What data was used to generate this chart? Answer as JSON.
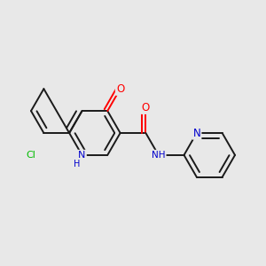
{
  "bg_color": "#e8e8e8",
  "bond_color": "#1a1a1a",
  "atom_colors": {
    "O": "#ff0000",
    "N": "#0000cc",
    "Cl": "#00bb00",
    "C": "#1a1a1a"
  },
  "figsize": [
    3.0,
    3.0
  ],
  "dpi": 100
}
